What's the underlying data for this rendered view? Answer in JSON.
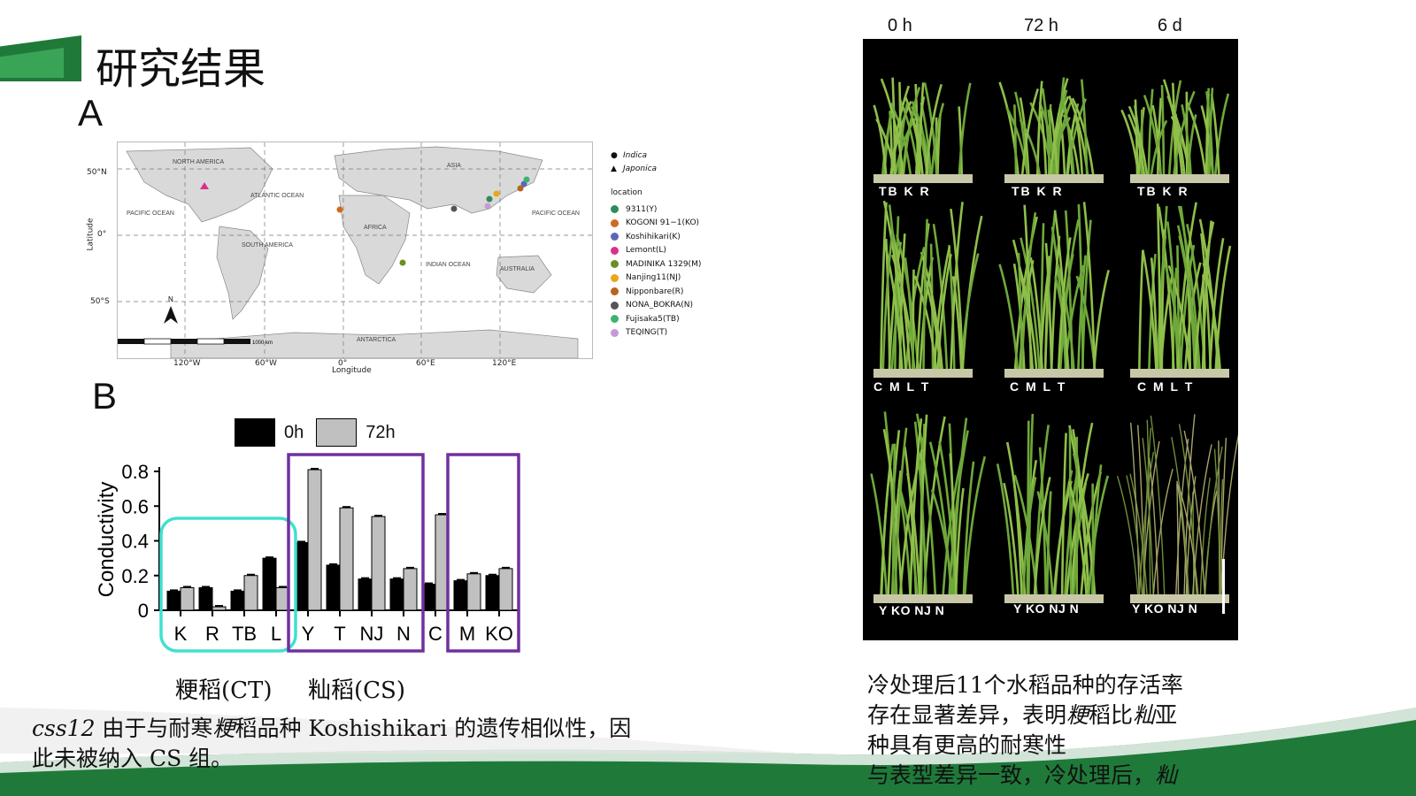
{
  "slide": {
    "title": "研究结果",
    "panel_a_label": "A",
    "panel_b_label": "B"
  },
  "map": {
    "ocean_labels": [
      "NORTH AMERICA",
      "ATLANTIC OCEAN",
      "PACIFIC OCEAN",
      "SOUTH AMERICA",
      "AFRICA",
      "ASIA",
      "INDIAN OCEAN",
      "AUSTRALIA",
      "PACIFIC OCEAN",
      "ANTARCTICA"
    ],
    "lat_ticks": [
      "50°N",
      "0°",
      "50°S"
    ],
    "lon_ticks": [
      "120°W",
      "60°W",
      "0°",
      "60°E",
      "120°E"
    ],
    "ylabel": "Latitude",
    "xlabel": "Longitude",
    "north_label": "N",
    "scale_label": "1000 km",
    "legend_shape": [
      {
        "symbol": "●",
        "label": "Indica"
      },
      {
        "symbol": "▲",
        "label": "Japonica"
      }
    ],
    "legend_title": "location",
    "locations": [
      {
        "label": "9311(Y)",
        "color": "#2e8b57"
      },
      {
        "label": "KOGONI 91−1(KO)",
        "color": "#d2691e"
      },
      {
        "label": "Koshihikari(K)",
        "color": "#5b6ab0"
      },
      {
        "label": "Lemont(L)",
        "color": "#d6338a"
      },
      {
        "label": "MADINIKA 1329(M)",
        "color": "#6b8e23"
      },
      {
        "label": "Nanjing11(NJ)",
        "color": "#e6a817"
      },
      {
        "label": "Nipponbare(R)",
        "color": "#b5651d"
      },
      {
        "label": "NONA_BOKRA(N)",
        "color": "#555555"
      },
      {
        "label": "Fujisaka5(TB)",
        "color": "#3cb371"
      },
      {
        "label": "TEQING(T)",
        "color": "#c79ad6"
      }
    ]
  },
  "chart_data": {
    "type": "bar",
    "ylabel": "Conductivity",
    "ylim": [
      0,
      0.8
    ],
    "yticks": [
      "0",
      "0.2",
      "0.4",
      "0.6",
      "0.8"
    ],
    "categories": [
      "K",
      "R",
      "TB",
      "L",
      "Y",
      "T",
      "NJ",
      "N",
      "C",
      "M",
      "KO"
    ],
    "series": [
      {
        "name": "0h",
        "color": "#000000",
        "values": [
          0.11,
          0.13,
          0.11,
          0.3,
          0.39,
          0.26,
          0.18,
          0.18,
          0.15,
          0.17,
          0.2
        ]
      },
      {
        "name": "72h",
        "color": "#c0c0c0",
        "values": [
          0.13,
          0.02,
          0.2,
          0.13,
          0.81,
          0.59,
          0.54,
          0.24,
          0.55,
          0.21,
          0.24
        ]
      }
    ],
    "groups": [
      {
        "label": "粳稻(CT)",
        "categories": [
          "K",
          "R",
          "TB",
          "L"
        ],
        "color": "#40e0d0"
      },
      {
        "label": "籼稻(CS)",
        "categories": [
          "Y",
          "T",
          "NJ",
          "N"
        ],
        "color": "#7030a0"
      },
      {
        "label": "",
        "categories": [
          "M",
          "KO"
        ],
        "color": "#7030a0"
      }
    ]
  },
  "note": {
    "italic": "css12",
    "part1": " 由于与耐寒",
    "italic2": "粳",
    "part2": "稻品种 Koshishikari 的遗传相似性，因",
    "line2": "此未被纳入 CS 组。"
  },
  "photo": {
    "time_labels": [
      "0 h",
      "72 h",
      "6 d"
    ],
    "row_labels": [
      [
        "TB K R",
        "TB K R",
        "TB K R"
      ],
      [
        "C M L T",
        "C M L T",
        "C M L T"
      ],
      [
        "Y KO NJ N",
        "Y KO NJ N",
        "Y KO NJ N"
      ]
    ]
  },
  "conclusion": {
    "line1": "冷处理后11个水稻品种的存活率",
    "line2a": "存在显著差异，表明",
    "line2b": "粳",
    "line2c": "稻比",
    "line2d": "籼",
    "line2e": "亚",
    "line3": "种具有更高的耐寒性",
    "line4a": "与表型差异一致，冷处理后，",
    "line4b": "籼"
  }
}
